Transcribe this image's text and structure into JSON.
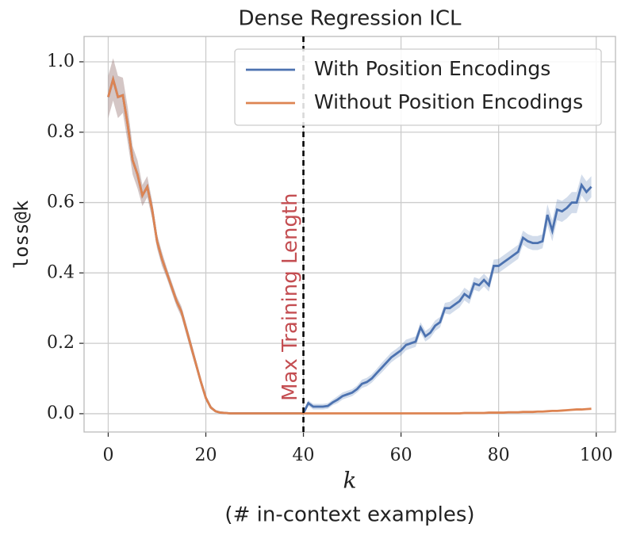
{
  "chart_data": {
    "type": "line",
    "title": "Dense Regression ICL",
    "xlabel": "k",
    "xlabel_sub": "(# in-context examples)",
    "ylabel": "loss@k",
    "x": [
      0,
      1,
      2,
      3,
      4,
      5,
      6,
      7,
      8,
      9,
      10,
      11,
      12,
      13,
      14,
      15,
      16,
      17,
      18,
      19,
      20,
      21,
      22,
      23,
      24,
      25,
      26,
      27,
      28,
      29,
      30,
      31,
      32,
      33,
      34,
      35,
      36,
      37,
      38,
      39,
      40,
      41,
      42,
      43,
      44,
      45,
      46,
      47,
      48,
      49,
      50,
      51,
      52,
      53,
      54,
      55,
      56,
      57,
      58,
      59,
      60,
      61,
      62,
      63,
      64,
      65,
      66,
      67,
      68,
      69,
      70,
      71,
      72,
      73,
      74,
      75,
      76,
      77,
      78,
      79,
      80,
      81,
      82,
      83,
      84,
      85,
      86,
      87,
      88,
      89,
      90,
      91,
      92,
      93,
      94,
      95,
      96,
      97,
      98,
      99
    ],
    "series": [
      {
        "name": "With Position Encodings",
        "color": "#4c72b0",
        "values": [
          0.9,
          0.95,
          0.9,
          0.905,
          0.82,
          0.72,
          0.68,
          0.62,
          0.645,
          0.58,
          0.49,
          0.44,
          0.4,
          0.36,
          0.32,
          0.29,
          0.24,
          0.19,
          0.14,
          0.09,
          0.045,
          0.018,
          0.007,
          0.003,
          0.002,
          0.001,
          0.001,
          0.001,
          0.001,
          0.001,
          0.001,
          0.001,
          0.001,
          0.001,
          0.001,
          0.001,
          0.001,
          0.001,
          0.001,
          0.001,
          0.001,
          0.03,
          0.02,
          0.02,
          0.02,
          0.022,
          0.032,
          0.04,
          0.05,
          0.055,
          0.06,
          0.07,
          0.085,
          0.09,
          0.1,
          0.115,
          0.13,
          0.145,
          0.16,
          0.17,
          0.18,
          0.195,
          0.2,
          0.205,
          0.245,
          0.22,
          0.23,
          0.25,
          0.26,
          0.3,
          0.3,
          0.31,
          0.32,
          0.34,
          0.33,
          0.37,
          0.365,
          0.38,
          0.365,
          0.42,
          0.42,
          0.43,
          0.44,
          0.45,
          0.46,
          0.5,
          0.49,
          0.485,
          0.485,
          0.49,
          0.565,
          0.52,
          0.58,
          0.575,
          0.585,
          0.6,
          0.6,
          0.65,
          0.63,
          0.645
        ],
        "errors": [
          0.06,
          0.06,
          0.06,
          0.05,
          0.05,
          0.04,
          0.04,
          0.03,
          0.03,
          0.025,
          0.02,
          0.02,
          0.015,
          0.015,
          0.015,
          0.015,
          0.015,
          0.015,
          0.012,
          0.01,
          0.008,
          0.005,
          0.003,
          0.002,
          0.001,
          0.001,
          0.001,
          0.001,
          0.001,
          0.001,
          0.001,
          0.001,
          0.001,
          0.001,
          0.001,
          0.001,
          0.001,
          0.001,
          0.001,
          0.001,
          0.005,
          0.008,
          0.008,
          0.008,
          0.008,
          0.008,
          0.008,
          0.01,
          0.01,
          0.01,
          0.01,
          0.01,
          0.012,
          0.012,
          0.012,
          0.012,
          0.014,
          0.014,
          0.014,
          0.014,
          0.015,
          0.015,
          0.015,
          0.015,
          0.015,
          0.015,
          0.015,
          0.015,
          0.015,
          0.015,
          0.018,
          0.018,
          0.018,
          0.018,
          0.018,
          0.018,
          0.018,
          0.018,
          0.018,
          0.018,
          0.02,
          0.02,
          0.02,
          0.02,
          0.02,
          0.02,
          0.02,
          0.02,
          0.02,
          0.02,
          0.03,
          0.03,
          0.03,
          0.03,
          0.03,
          0.03,
          0.03,
          0.03,
          0.03,
          0.03
        ]
      },
      {
        "name": "Without Position Encodings",
        "color": "#dd8452",
        "values": [
          0.9,
          0.95,
          0.9,
          0.905,
          0.82,
          0.72,
          0.68,
          0.62,
          0.645,
          0.58,
          0.49,
          0.44,
          0.4,
          0.36,
          0.32,
          0.29,
          0.24,
          0.19,
          0.14,
          0.09,
          0.045,
          0.018,
          0.007,
          0.003,
          0.002,
          0.001,
          0.001,
          0.001,
          0.001,
          0.001,
          0.001,
          0.001,
          0.001,
          0.001,
          0.001,
          0.001,
          0.001,
          0.001,
          0.001,
          0.001,
          0.001,
          0.001,
          0.001,
          0.001,
          0.001,
          0.001,
          0.001,
          0.001,
          0.001,
          0.001,
          0.001,
          0.001,
          0.001,
          0.001,
          0.001,
          0.001,
          0.001,
          0.001,
          0.001,
          0.001,
          0.001,
          0.001,
          0.001,
          0.001,
          0.001,
          0.001,
          0.001,
          0.001,
          0.001,
          0.001,
          0.001,
          0.001,
          0.001,
          0.002,
          0.002,
          0.002,
          0.002,
          0.002,
          0.003,
          0.003,
          0.003,
          0.003,
          0.004,
          0.004,
          0.004,
          0.005,
          0.005,
          0.005,
          0.006,
          0.006,
          0.007,
          0.008,
          0.008,
          0.009,
          0.01,
          0.011,
          0.012,
          0.012,
          0.013,
          0.014
        ],
        "errors": [
          0.06,
          0.06,
          0.06,
          0.05,
          0.05,
          0.04,
          0.04,
          0.03,
          0.03,
          0.025,
          0.02,
          0.02,
          0.015,
          0.015,
          0.015,
          0.015,
          0.015,
          0.015,
          0.012,
          0.01,
          0.008,
          0.005,
          0.003,
          0.002,
          0.001,
          0.001,
          0.001,
          0.001,
          0.001,
          0.001,
          0.001,
          0.001,
          0.001,
          0.001,
          0.001,
          0.001,
          0.001,
          0.001,
          0.001,
          0.001,
          0.001,
          0.001,
          0.001,
          0.001,
          0.001,
          0.001,
          0.001,
          0.001,
          0.001,
          0.001,
          0.001,
          0.001,
          0.001,
          0.001,
          0.001,
          0.001,
          0.001,
          0.001,
          0.001,
          0.001,
          0.001,
          0.001,
          0.001,
          0.001,
          0.001,
          0.001,
          0.001,
          0.001,
          0.001,
          0.001,
          0.001,
          0.001,
          0.001,
          0.001,
          0.001,
          0.001,
          0.001,
          0.001,
          0.001,
          0.001,
          0.001,
          0.001,
          0.001,
          0.001,
          0.001,
          0.001,
          0.001,
          0.001,
          0.001,
          0.001,
          0.001,
          0.001,
          0.001,
          0.001,
          0.001,
          0.001,
          0.001,
          0.001,
          0.001,
          0.001
        ]
      }
    ],
    "xlim": [
      -4.95,
      103.95
    ],
    "ylim": [
      -0.052,
      1.072
    ],
    "xticks": [
      0,
      20,
      40,
      60,
      80,
      100
    ],
    "yticks": [
      {
        "value": 0,
        "label": "0.0"
      },
      0.2,
      0.4,
      0.6,
      0.8,
      {
        "value": 1,
        "label": "1.0"
      }
    ],
    "grid": true,
    "legend": "upper right",
    "annotation": {
      "text": "Max Training Length",
      "x": 40,
      "color": "#c44e52"
    }
  }
}
